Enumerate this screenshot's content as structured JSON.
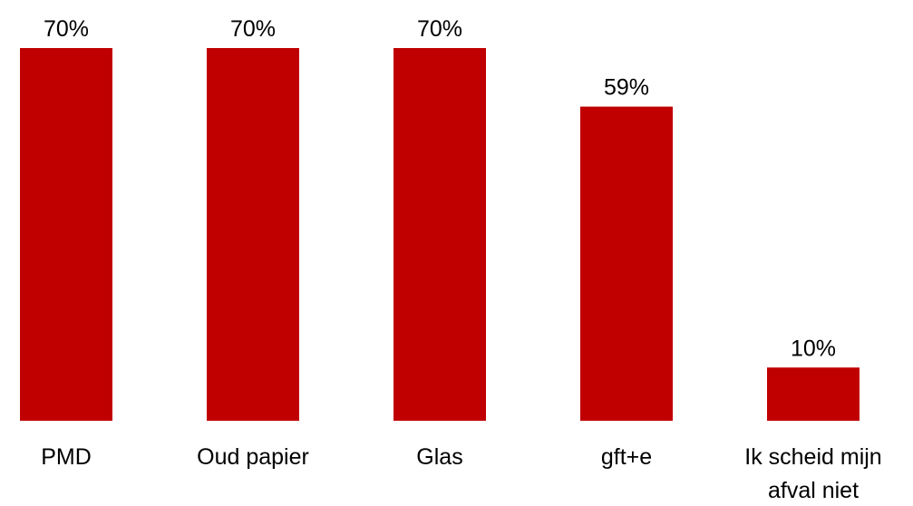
{
  "chart_data": {
    "type": "bar",
    "categories": [
      "PMD",
      "Oud papier",
      "Glas",
      "gft+e",
      "Ik scheid mijn afval niet"
    ],
    "category_lines": [
      [
        "PMD"
      ],
      [
        "Oud papier"
      ],
      [
        "Glas"
      ],
      [
        "gft+e"
      ],
      [
        "Ik scheid mijn",
        "afval niet"
      ]
    ],
    "values": [
      70,
      70,
      70,
      59,
      10
    ],
    "value_labels": [
      "70%",
      "70%",
      "70%",
      "59%",
      "10%"
    ],
    "title": "",
    "xlabel": "",
    "ylabel": "",
    "ylim": [
      0,
      70
    ],
    "grid": false,
    "legend": "none",
    "colors": {
      "bar": "#c00000",
      "text": "#000000"
    }
  }
}
